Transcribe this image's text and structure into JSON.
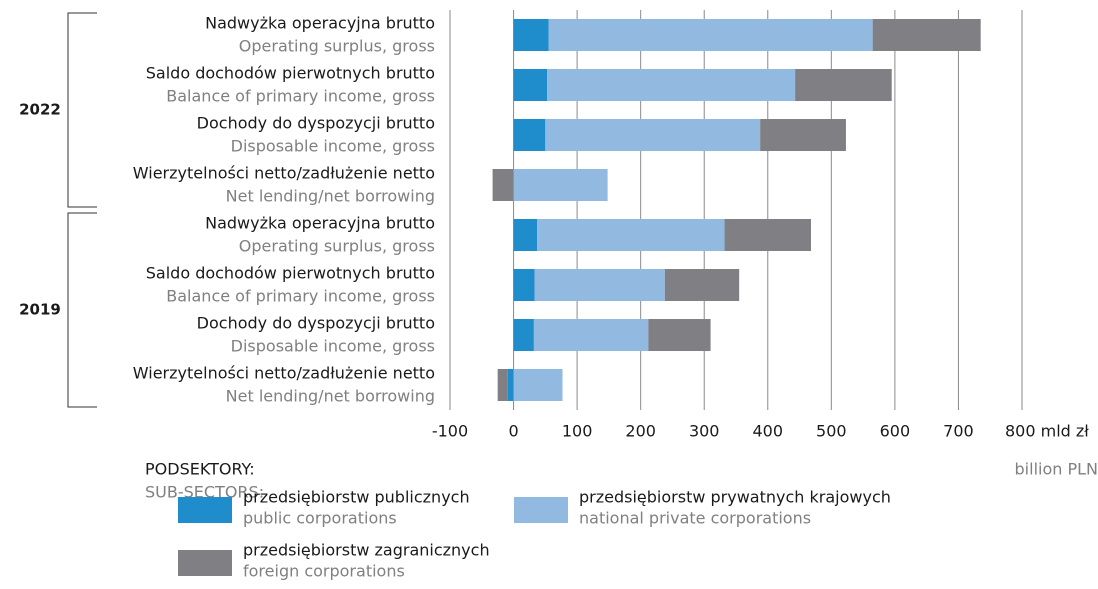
{
  "chart_data": {
    "type": "bar",
    "orientation": "horizontal",
    "stacked": true,
    "groups": [
      "2022",
      "2019"
    ],
    "categories": [
      "Nadwyżka operacyjna brutto",
      "Saldo dochodów pierwotnych brutto",
      "Dochody do dyspozycji brutto",
      "Wierzytelności netto/zadłużenie netto",
      "Nadwyżka operacyjna brutto",
      "Saldo dochodów pierwotnych brutto",
      "Dochody do dyspozycji brutto",
      "Wierzytelności netto/zadłużenie netto"
    ],
    "categories_en": [
      "Operating surplus, gross",
      "Balance of primary income, gross",
      "Disposable income, gross",
      "Net lending/net borrowing",
      "Operating surplus, gross",
      "Balance of primary income, gross",
      "Disposable income, gross",
      "Net lending/net borrowing"
    ],
    "series": [
      {
        "name": "przedsiębiorstw publicznych",
        "name_en": "public corporations",
        "color": "#1f8ccc",
        "values": [
          55,
          53,
          50,
          0,
          37,
          33,
          32,
          -9
        ]
      },
      {
        "name": "przedsiębiorstw prywatnych krajowych",
        "name_en": "national private corporations",
        "color": "#92b9e0",
        "values": [
          510,
          390,
          338,
          148,
          295,
          205,
          180,
          77
        ]
      },
      {
        "name": "przedsiębiorstw zagranicznych",
        "name_en": "foreign corporations",
        "color": "#808084",
        "values": [
          170,
          152,
          135,
          -33,
          136,
          117,
          98,
          -16
        ]
      }
    ],
    "xlim": [
      -100,
      800
    ],
    "xticks": [
      -100,
      0,
      100,
      200,
      300,
      400,
      500,
      600,
      700,
      {
        "value": 800,
        "label": "800 mld zł"
      }
    ],
    "x_unit_en": "billion PLN",
    "legend_title": "PODSEKTORY:",
    "legend_title_en": "SUB-SECTORS:",
    "grid": true
  }
}
